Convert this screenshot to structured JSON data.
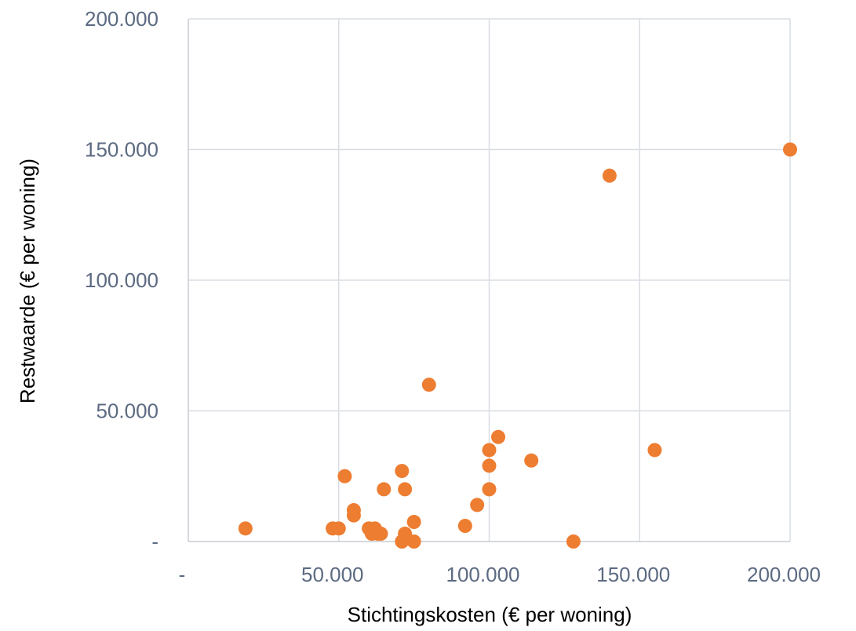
{
  "chart_data": {
    "type": "scatter",
    "xlabel": "Stichtingskosten (€ per woning)",
    "ylabel": "Restwaarde (€ per woning)",
    "xlim": [
      0,
      200000
    ],
    "ylim": [
      0,
      200000
    ],
    "x_ticks": [
      0,
      50000,
      100000,
      150000,
      200000
    ],
    "x_tick_labels": [
      "-",
      "50.000",
      "100.000",
      "150.000",
      "200.000"
    ],
    "y_ticks": [
      0,
      50000,
      100000,
      150000,
      200000
    ],
    "y_tick_labels": [
      "-",
      "50.000",
      "100.000",
      "150.000",
      "200.000"
    ],
    "grid": true,
    "point_color": "#ed7d31",
    "grid_color": "#d9dde3",
    "points": [
      {
        "x": 19000,
        "y": 5000
      },
      {
        "x": 48000,
        "y": 5000
      },
      {
        "x": 50000,
        "y": 5000
      },
      {
        "x": 52000,
        "y": 25000
      },
      {
        "x": 55000,
        "y": 12000
      },
      {
        "x": 55000,
        "y": 10000
      },
      {
        "x": 60000,
        "y": 5000
      },
      {
        "x": 61000,
        "y": 3000
      },
      {
        "x": 62000,
        "y": 5000
      },
      {
        "x": 63000,
        "y": 3000
      },
      {
        "x": 64000,
        "y": 3000
      },
      {
        "x": 65000,
        "y": 20000
      },
      {
        "x": 71000,
        "y": 27000
      },
      {
        "x": 71000,
        "y": 0
      },
      {
        "x": 72000,
        "y": 3000
      },
      {
        "x": 72000,
        "y": 20000
      },
      {
        "x": 75000,
        "y": 7500
      },
      {
        "x": 75000,
        "y": 0
      },
      {
        "x": 80000,
        "y": 60000
      },
      {
        "x": 92000,
        "y": 6000
      },
      {
        "x": 96000,
        "y": 14000
      },
      {
        "x": 100000,
        "y": 35000
      },
      {
        "x": 100000,
        "y": 29000
      },
      {
        "x": 100000,
        "y": 20000
      },
      {
        "x": 103000,
        "y": 40000
      },
      {
        "x": 114000,
        "y": 31000
      },
      {
        "x": 128000,
        "y": 0
      },
      {
        "x": 140000,
        "y": 140000
      },
      {
        "x": 155000,
        "y": 35000
      },
      {
        "x": 200000,
        "y": 150000
      }
    ]
  }
}
